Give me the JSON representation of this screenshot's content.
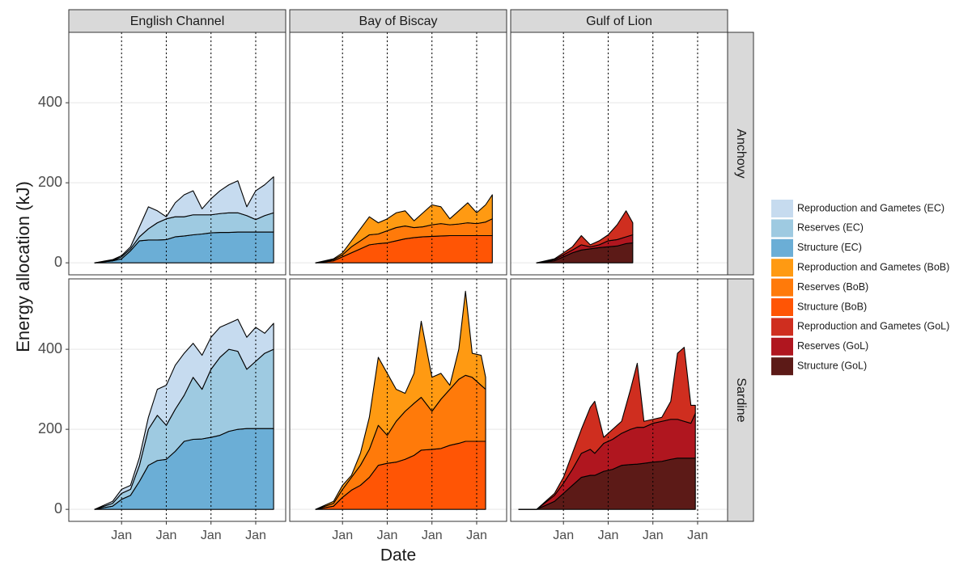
{
  "chart_data": {
    "type": "area",
    "stacked": true,
    "xlabel": "Date",
    "ylabel": "Energy allocation (kJ)",
    "rows": [
      "Anchovy",
      "Sardine"
    ],
    "ylim": [
      -30,
      576
    ],
    "yticks": [
      0,
      200,
      400
    ],
    "xlim": [
      -0.18,
      4.67
    ],
    "xticks": [
      {
        "value": 1,
        "label": "Jan"
      },
      {
        "value": 2,
        "label": "Jan"
      },
      {
        "value": 3,
        "label": "Jan"
      },
      {
        "value": 4,
        "label": "Jan"
      }
    ],
    "grid": true,
    "columns": [
      {
        "title": "English Channel",
        "x": [
          [
            0.4,
            0.8,
            1.0,
            1.2,
            1.4,
            1.6,
            1.8,
            2.0,
            2.2,
            2.4,
            2.6,
            2.8,
            3.0,
            3.2,
            3.4,
            3.6,
            3.8,
            4.0,
            4.2,
            4.4
          ],
          [
            0.4,
            0.8,
            1.0,
            1.2,
            1.4,
            1.6,
            1.8,
            2.0,
            2.2,
            2.4,
            2.6,
            2.8,
            3.0,
            3.2,
            3.4,
            3.6,
            3.8,
            4.0,
            4.2,
            4.4
          ]
        ],
        "series": [
          {
            "name": "Reproduction and Gametes (EC)",
            "color": "#c6dbef",
            "values": [
              [
                0,
                2,
                3,
                5,
                25,
                55,
                30,
                5,
                35,
                55,
                60,
                15,
                40,
                57,
                70,
                80,
                22,
                72,
                77,
                90
              ],
              [
                0,
                5,
                10,
                10,
                20,
                30,
                65,
                100,
                110,
                105,
                85,
                85,
                80,
                75,
                65,
                80,
                80,
                85,
                50,
                65
              ]
            ]
          },
          {
            "name": "Reserves (EC)",
            "color": "#9ecae1",
            "values": [
              [
                0,
                1,
                5,
                5,
                10,
                28,
                43,
                52,
                50,
                48,
                50,
                48,
                45,
                47,
                49,
                48,
                41,
                31,
                41,
                48
              ],
              [
                0,
                7,
                15,
                15,
                40,
                90,
                113,
                85,
                105,
                115,
                155,
                124,
                170,
                195,
                205,
                195,
                148,
                168,
                188,
                198
              ]
            ]
          },
          {
            "name": "Structure (EC)",
            "color": "#6baed6",
            "values": [
              [
                0,
                5,
                10,
                30,
                55,
                57,
                57,
                58,
                65,
                67,
                70,
                72,
                75,
                76,
                76,
                77,
                77,
                77,
                77,
                77
              ],
              [
                0,
                8,
                25,
                35,
                70,
                110,
                122,
                125,
                145,
                170,
                175,
                176,
                180,
                185,
                195,
                200,
                202,
                202,
                202,
                202
              ]
            ]
          }
        ]
      },
      {
        "title": "Bay of Biscay",
        "x": [
          [
            0.4,
            0.8,
            1.0,
            1.2,
            1.4,
            1.6,
            1.8,
            2.0,
            2.2,
            2.4,
            2.6,
            2.8,
            3.0,
            3.2,
            3.4,
            3.6,
            3.8,
            4.0,
            4.2,
            4.35
          ],
          [
            0.4,
            0.8,
            1.0,
            1.2,
            1.4,
            1.6,
            1.8,
            2.0,
            2.2,
            2.4,
            2.6,
            2.76,
            3.0,
            3.2,
            3.4,
            3.6,
            3.75,
            3.9,
            4.1,
            4.2
          ]
        ],
        "series": [
          {
            "name": "Reproduction and Gametes (BoB)",
            "color": "#ff9a12",
            "values": [
              [
                0,
                2,
                5,
                15,
                30,
                45,
                28,
                30,
                37,
                38,
                17,
                35,
                50,
                42,
                15,
                33,
                50,
                27,
                43,
                60
              ],
              [
                0,
                5,
                10,
                5,
                30,
                80,
                170,
                155,
                80,
                45,
                75,
                190,
                85,
                65,
                10,
                75,
                210,
                60,
                75,
                30
              ]
            ]
          },
          {
            "name": "Reserves (BoB)",
            "color": "#ff7a0a",
            "values": [
              [
                0,
                3,
                5,
                15,
                20,
                25,
                24,
                30,
                33,
                32,
                25,
                25,
                29,
                31,
                27,
                29,
                32,
                30,
                34,
                42
              ],
              [
                0,
                7,
                20,
                32,
                50,
                70,
                100,
                70,
                102,
                120,
                130,
                132,
                95,
                123,
                140,
                160,
                165,
                160,
                140,
                130
              ]
            ]
          },
          {
            "name": "Structure (BoB)",
            "color": "#ff5505",
            "values": [
              [
                0,
                5,
                15,
                25,
                35,
                45,
                48,
                50,
                55,
                60,
                63,
                65,
                66,
                67,
                68,
                68,
                68,
                68,
                68,
                68
              ],
              [
                0,
                8,
                30,
                48,
                60,
                80,
                110,
                115,
                118,
                125,
                135,
                148,
                150,
                152,
                160,
                165,
                170,
                170,
                170,
                170
              ]
            ]
          }
        ]
      },
      {
        "title": "Gulf of Lion",
        "x": [
          [
            0.4,
            0.8,
            1.0,
            1.2,
            1.4,
            1.6,
            1.8,
            2.0,
            2.2,
            2.4,
            2.55
          ],
          [
            0.0,
            0.4,
            0.8,
            1.0,
            1.2,
            1.4,
            1.6,
            1.7,
            1.9,
            2.1,
            2.3,
            2.5,
            2.65,
            2.8,
            3.0,
            3.2,
            3.4,
            3.55,
            3.7,
            3.85,
            3.95
          ]
        ],
        "series": [
          {
            "name": "Reproduction and Gametes (GoL)",
            "color": "#cf2e1f",
            "values": [
              [
                0,
                2,
                5,
                8,
                23,
                5,
                10,
                15,
                37,
                65,
                30
              ],
              [
                0,
                0,
                5,
                15,
                40,
                60,
                105,
                130,
                15,
                25,
                30,
                100,
                160,
                15,
                10,
                10,
                45,
                165,
                185,
                45,
                20
              ]
            ]
          },
          {
            "name": "Reserves (GoL)",
            "color": "#b0161f",
            "values": [
              [
                0,
                3,
                5,
                7,
                13,
                5,
                7,
                15,
                16,
                17,
                20
              ],
              [
                0,
                0,
                15,
                25,
                40,
                60,
                65,
                55,
                70,
                75,
                80,
                88,
                92,
                90,
                97,
                100,
                100,
                97,
                92,
                87,
                112
              ]
            ]
          },
          {
            "name": "Structure (GoL)",
            "color": "#5c1a17",
            "values": [
              [
                0,
                5,
                15,
                25,
                32,
                35,
                38,
                40,
                42,
                48,
                50
              ],
              [
                0,
                0,
                20,
                40,
                60,
                80,
                85,
                85,
                95,
                100,
                110,
                112,
                113,
                115,
                118,
                120,
                125,
                128,
                128,
                128,
                128
              ]
            ]
          }
        ]
      }
    ]
  }
}
